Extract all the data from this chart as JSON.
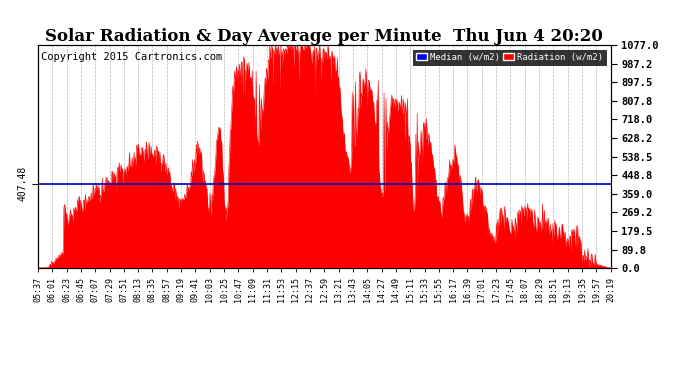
{
  "title": "Solar Radiation & Day Average per Minute  Thu Jun 4 20:20",
  "copyright": "Copyright 2015 Cartronics.com",
  "median_value": 407.48,
  "y_max": 1077.0,
  "y_min": 0.0,
  "yticks": [
    0.0,
    89.8,
    179.5,
    269.2,
    359.0,
    448.8,
    538.5,
    628.2,
    718.0,
    807.8,
    897.5,
    987.2,
    1077.0
  ],
  "bar_color": "#FF0000",
  "median_color": "#0000BB",
  "bg_color": "#FFFFFF",
  "grid_color": "#999999",
  "legend_median_bg": "#0000FF",
  "legend_radiation_bg": "#FF0000",
  "title_fontsize": 12,
  "copyright_fontsize": 7.5,
  "xtick_labels": [
    "05:37",
    "06:01",
    "06:23",
    "06:45",
    "07:07",
    "07:29",
    "07:51",
    "08:13",
    "08:35",
    "08:57",
    "09:19",
    "09:41",
    "10:03",
    "10:25",
    "10:47",
    "11:09",
    "11:31",
    "11:53",
    "12:15",
    "12:37",
    "12:59",
    "13:21",
    "13:43",
    "14:05",
    "14:27",
    "14:49",
    "15:11",
    "15:33",
    "15:55",
    "16:17",
    "16:39",
    "17:01",
    "17:23",
    "17:45",
    "18:07",
    "18:29",
    "18:51",
    "19:13",
    "19:35",
    "19:57",
    "20:19"
  ]
}
